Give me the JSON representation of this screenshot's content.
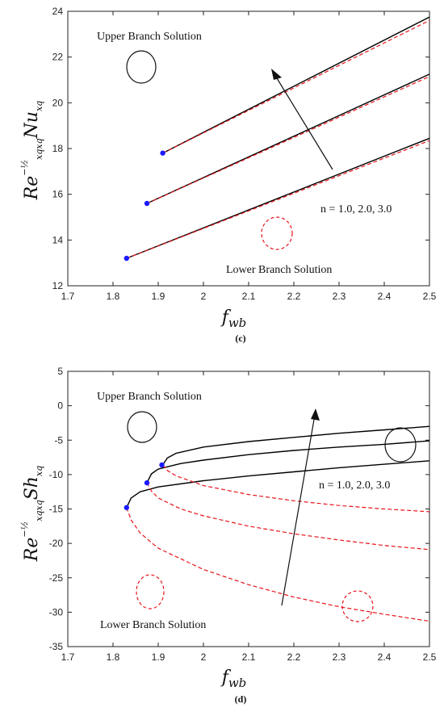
{
  "chart_data": [
    {
      "type": "line",
      "panel_caption": "(c)",
      "xlabel_base": "f",
      "xlabel_sub": "wb",
      "ylabel_main": "Re",
      "ylabel_sup": "−½",
      "ylabel_sub": "xqxq",
      "ylabel_main2": "Nu",
      "ylabel_sub2": "xq",
      "xlim": [
        1.7,
        2.5
      ],
      "ylim": [
        12,
        24
      ],
      "xticks": [
        1.7,
        1.8,
        1.9,
        2,
        2.1,
        2.2,
        2.3,
        2.4,
        2.5
      ],
      "yticks": [
        12,
        14,
        16,
        18,
        20,
        22,
        24
      ],
      "xtick_labels": [
        "1.7",
        "1.8",
        "1.9",
        "2",
        "2.1",
        "2.2",
        "2.3",
        "2.4",
        "2.5"
      ],
      "ytick_labels": [
        "12",
        "14",
        "16",
        "18",
        "20",
        "22",
        "24"
      ],
      "annotations": {
        "upper": "Upper Branch Solution",
        "lower": "Lower Branch Solution",
        "n_label": "n = 1.0, 2.0, 3.0"
      },
      "series": [
        {
          "branch": "upper",
          "style": "solid-black",
          "x": [
            1.83,
            2.5
          ],
          "y": [
            13.2,
            18.45
          ]
        },
        {
          "branch": "lower",
          "style": "dashed-red",
          "x": [
            1.83,
            2.5
          ],
          "y": [
            13.2,
            18.35
          ]
        },
        {
          "branch": "upper",
          "style": "solid-black",
          "x": [
            1.875,
            2.5
          ],
          "y": [
            15.6,
            21.25
          ]
        },
        {
          "branch": "lower",
          "style": "dashed-red",
          "x": [
            1.875,
            2.5
          ],
          "y": [
            15.6,
            21.15
          ]
        },
        {
          "branch": "upper",
          "style": "solid-black",
          "x": [
            1.91,
            2.5
          ],
          "y": [
            17.8,
            23.75
          ]
        },
        {
          "branch": "lower",
          "style": "dashed-red",
          "x": [
            1.91,
            2.5
          ],
          "y": [
            17.8,
            23.6
          ]
        }
      ],
      "critical_points": [
        {
          "x": 1.83,
          "y": 13.2
        },
        {
          "x": 1.875,
          "y": 15.6
        },
        {
          "x": 1.91,
          "y": 17.8
        }
      ],
      "colors": {
        "upper": "#000000",
        "lower": "#e8141b",
        "point": "#1a1aff"
      }
    },
    {
      "type": "line",
      "panel_caption": "(d)",
      "xlabel_base": "f",
      "xlabel_sub": "wb",
      "ylabel_main": "Re",
      "ylabel_sup": "−½",
      "ylabel_sub": "xqxq",
      "ylabel_main2": "Sh",
      "ylabel_sub2": "xq",
      "xlim": [
        1.7,
        2.5
      ],
      "ylim": [
        -35,
        5
      ],
      "xticks": [
        1.7,
        1.8,
        1.9,
        2,
        2.1,
        2.2,
        2.3,
        2.4,
        2.5
      ],
      "yticks": [
        -35,
        -30,
        -25,
        -20,
        -15,
        -10,
        -5,
        0,
        5
      ],
      "xtick_labels": [
        "1.7",
        "1.8",
        "1.9",
        "2",
        "2.1",
        "2.2",
        "2.3",
        "2.4",
        "2.5"
      ],
      "ytick_labels": [
        "-35",
        "-30",
        "-25",
        "-20",
        "-15",
        "-10",
        "-5",
        "0",
        "5"
      ],
      "annotations": {
        "upper": "Upper Branch Solution",
        "lower": "Lower Branch Solution",
        "n_label": "n = 1.0, 2.0, 3.0"
      },
      "series": [
        {
          "branch": "upper",
          "style": "solid-black",
          "x": [
            1.83,
            1.84,
            1.86,
            1.9,
            2.0,
            2.1,
            2.2,
            2.3,
            2.4,
            2.5
          ],
          "y": [
            -14.8,
            -13.4,
            -12.5,
            -11.8,
            -10.9,
            -10.2,
            -9.6,
            -9.0,
            -8.5,
            -8.0
          ]
        },
        {
          "branch": "lower",
          "style": "dashed-red",
          "x": [
            1.83,
            1.84,
            1.86,
            1.9,
            2.0,
            2.1,
            2.2,
            2.3,
            2.4,
            2.5
          ],
          "y": [
            -14.8,
            -16.6,
            -18.5,
            -20.7,
            -23.8,
            -26.0,
            -27.8,
            -29.2,
            -30.3,
            -31.3
          ]
        },
        {
          "branch": "upper",
          "style": "solid-black",
          "x": [
            1.875,
            1.885,
            1.9,
            1.95,
            2.0,
            2.1,
            2.2,
            2.3,
            2.4,
            2.5
          ],
          "y": [
            -11.2,
            -9.9,
            -9.2,
            -8.4,
            -7.9,
            -7.1,
            -6.5,
            -6.0,
            -5.6,
            -5.1
          ]
        },
        {
          "branch": "lower",
          "style": "dashed-red",
          "x": [
            1.875,
            1.885,
            1.9,
            1.95,
            2.0,
            2.1,
            2.2,
            2.3,
            2.4,
            2.5
          ],
          "y": [
            -11.2,
            -12.4,
            -13.4,
            -15.0,
            -16.0,
            -17.5,
            -18.6,
            -19.5,
            -20.3,
            -20.9
          ]
        },
        {
          "branch": "upper",
          "style": "solid-black",
          "x": [
            1.91,
            1.92,
            1.94,
            2.0,
            2.1,
            2.2,
            2.3,
            2.4,
            2.5
          ],
          "y": [
            -8.6,
            -7.6,
            -6.9,
            -6.0,
            -5.2,
            -4.6,
            -4.0,
            -3.5,
            -3.0
          ]
        },
        {
          "branch": "lower",
          "style": "dashed-red",
          "x": [
            1.91,
            1.92,
            1.94,
            2.0,
            2.1,
            2.2,
            2.3,
            2.4,
            2.5
          ],
          "y": [
            -8.6,
            -9.4,
            -10.2,
            -11.6,
            -12.9,
            -13.8,
            -14.5,
            -15.0,
            -15.4
          ]
        }
      ],
      "critical_points": [
        {
          "x": 1.83,
          "y": -14.8
        },
        {
          "x": 1.875,
          "y": -11.2
        },
        {
          "x": 1.908,
          "y": -8.6
        }
      ],
      "colors": {
        "upper": "#000000",
        "lower": "#e8141b",
        "point": "#1a1aff"
      }
    }
  ]
}
